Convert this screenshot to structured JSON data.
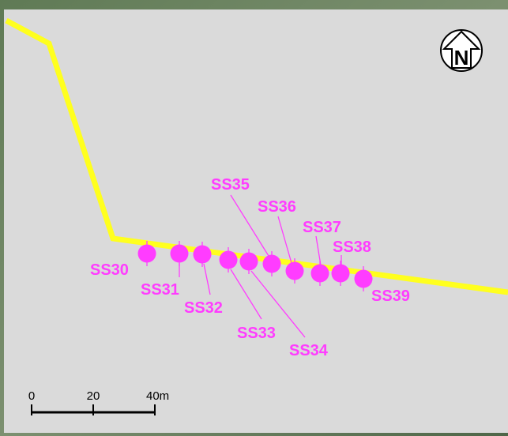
{
  "map": {
    "samples": [
      "SS30",
      "SS31",
      "SS32",
      "SS33",
      "SS34",
      "SS35",
      "SS36",
      "SS37",
      "SS38",
      "SS39"
    ],
    "scale_bar": {
      "labels": [
        "0",
        "20",
        "40m"
      ]
    },
    "north_arrow": {
      "label": "N"
    }
  }
}
